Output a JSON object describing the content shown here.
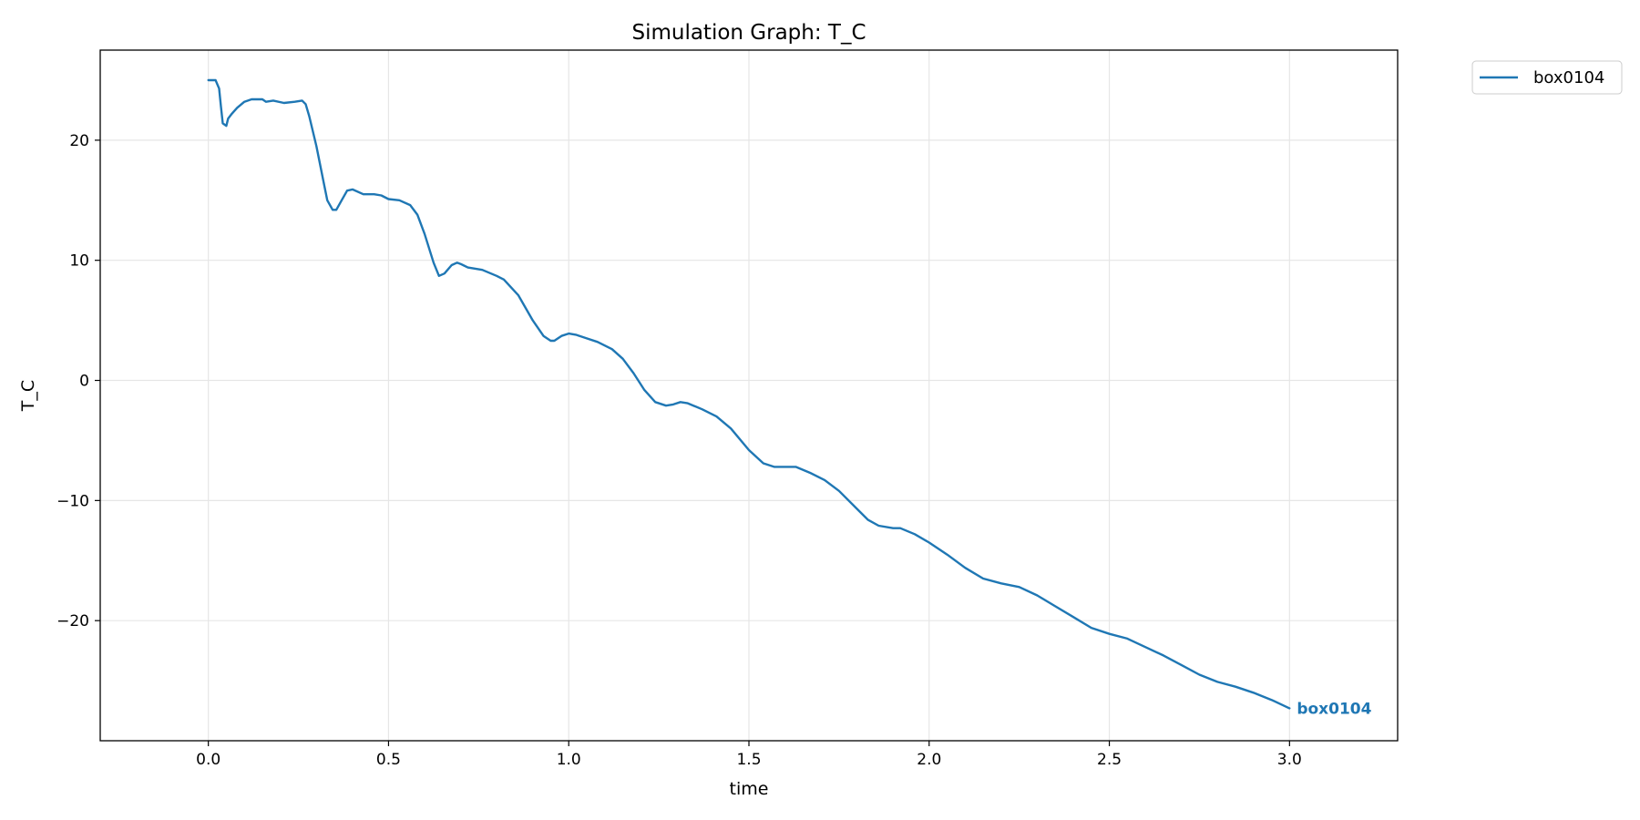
{
  "chart_data": {
    "type": "line",
    "title": "Simulation Graph: T_C",
    "xlabel": "time",
    "ylabel": "T_C",
    "xlim": [
      -0.3,
      3.3
    ],
    "ylim": [
      -30,
      27.5
    ],
    "xticks": [
      0.0,
      0.5,
      1.0,
      1.5,
      2.0,
      2.5,
      3.0
    ],
    "xtick_labels": [
      "0.0",
      "0.5",
      "1.0",
      "1.5",
      "2.0",
      "2.5",
      "3.0"
    ],
    "yticks": [
      -20,
      -10,
      0,
      10,
      20
    ],
    "ytick_labels": [
      "−20",
      "−10",
      "0",
      "10",
      "20"
    ],
    "grid": true,
    "legend_position": "outside-top-right",
    "series": [
      {
        "name": "box0104",
        "color": "#1f77b4",
        "end_label": "box0104",
        "x": [
          0.0,
          0.02,
          0.03,
          0.035,
          0.04,
          0.05,
          0.055,
          0.065,
          0.08,
          0.1,
          0.12,
          0.15,
          0.16,
          0.18,
          0.21,
          0.24,
          0.26,
          0.27,
          0.28,
          0.3,
          0.32,
          0.33,
          0.345,
          0.355,
          0.37,
          0.385,
          0.4,
          0.43,
          0.46,
          0.48,
          0.5,
          0.53,
          0.56,
          0.58,
          0.6,
          0.625,
          0.64,
          0.655,
          0.675,
          0.69,
          0.7,
          0.72,
          0.76,
          0.8,
          0.82,
          0.86,
          0.9,
          0.93,
          0.95,
          0.96,
          0.98,
          1.0,
          1.02,
          1.05,
          1.08,
          1.12,
          1.15,
          1.18,
          1.21,
          1.24,
          1.27,
          1.29,
          1.31,
          1.33,
          1.37,
          1.41,
          1.45,
          1.5,
          1.54,
          1.57,
          1.6,
          1.63,
          1.67,
          1.71,
          1.75,
          1.8,
          1.83,
          1.86,
          1.9,
          1.92,
          1.96,
          2.0,
          2.05,
          2.1,
          2.15,
          2.2,
          2.25,
          2.3,
          2.35,
          2.4,
          2.45,
          2.5,
          2.55,
          2.6,
          2.65,
          2.7,
          2.75,
          2.8,
          2.85,
          2.9,
          2.95,
          3.0
        ],
        "y": [
          25.0,
          25.0,
          24.3,
          22.8,
          21.4,
          21.2,
          21.8,
          22.2,
          22.7,
          23.2,
          23.4,
          23.4,
          23.2,
          23.3,
          23.1,
          23.2,
          23.3,
          23.0,
          22.0,
          19.5,
          16.5,
          15.0,
          14.2,
          14.2,
          15.0,
          15.8,
          15.9,
          15.5,
          15.5,
          15.4,
          15.1,
          15.0,
          14.6,
          13.8,
          12.2,
          9.8,
          8.7,
          8.9,
          9.6,
          9.8,
          9.7,
          9.4,
          9.2,
          8.7,
          8.4,
          7.1,
          5.0,
          3.7,
          3.3,
          3.3,
          3.7,
          3.9,
          3.8,
          3.5,
          3.2,
          2.6,
          1.8,
          0.6,
          -0.8,
          -1.8,
          -2.1,
          -2.0,
          -1.8,
          -1.9,
          -2.4,
          -3.0,
          -4.0,
          -5.8,
          -6.9,
          -7.2,
          -7.2,
          -7.2,
          -7.7,
          -8.3,
          -9.2,
          -10.7,
          -11.6,
          -12.1,
          -12.3,
          -12.3,
          -12.8,
          -13.5,
          -14.5,
          -15.6,
          -16.5,
          -16.9,
          -17.2,
          -17.9,
          -18.8,
          -19.7,
          -20.6,
          -21.1,
          -21.5,
          -22.2,
          -22.9,
          -23.7,
          -24.5,
          -25.1,
          -25.5,
          -26.0,
          -26.6,
          -27.3
        ]
      }
    ]
  }
}
